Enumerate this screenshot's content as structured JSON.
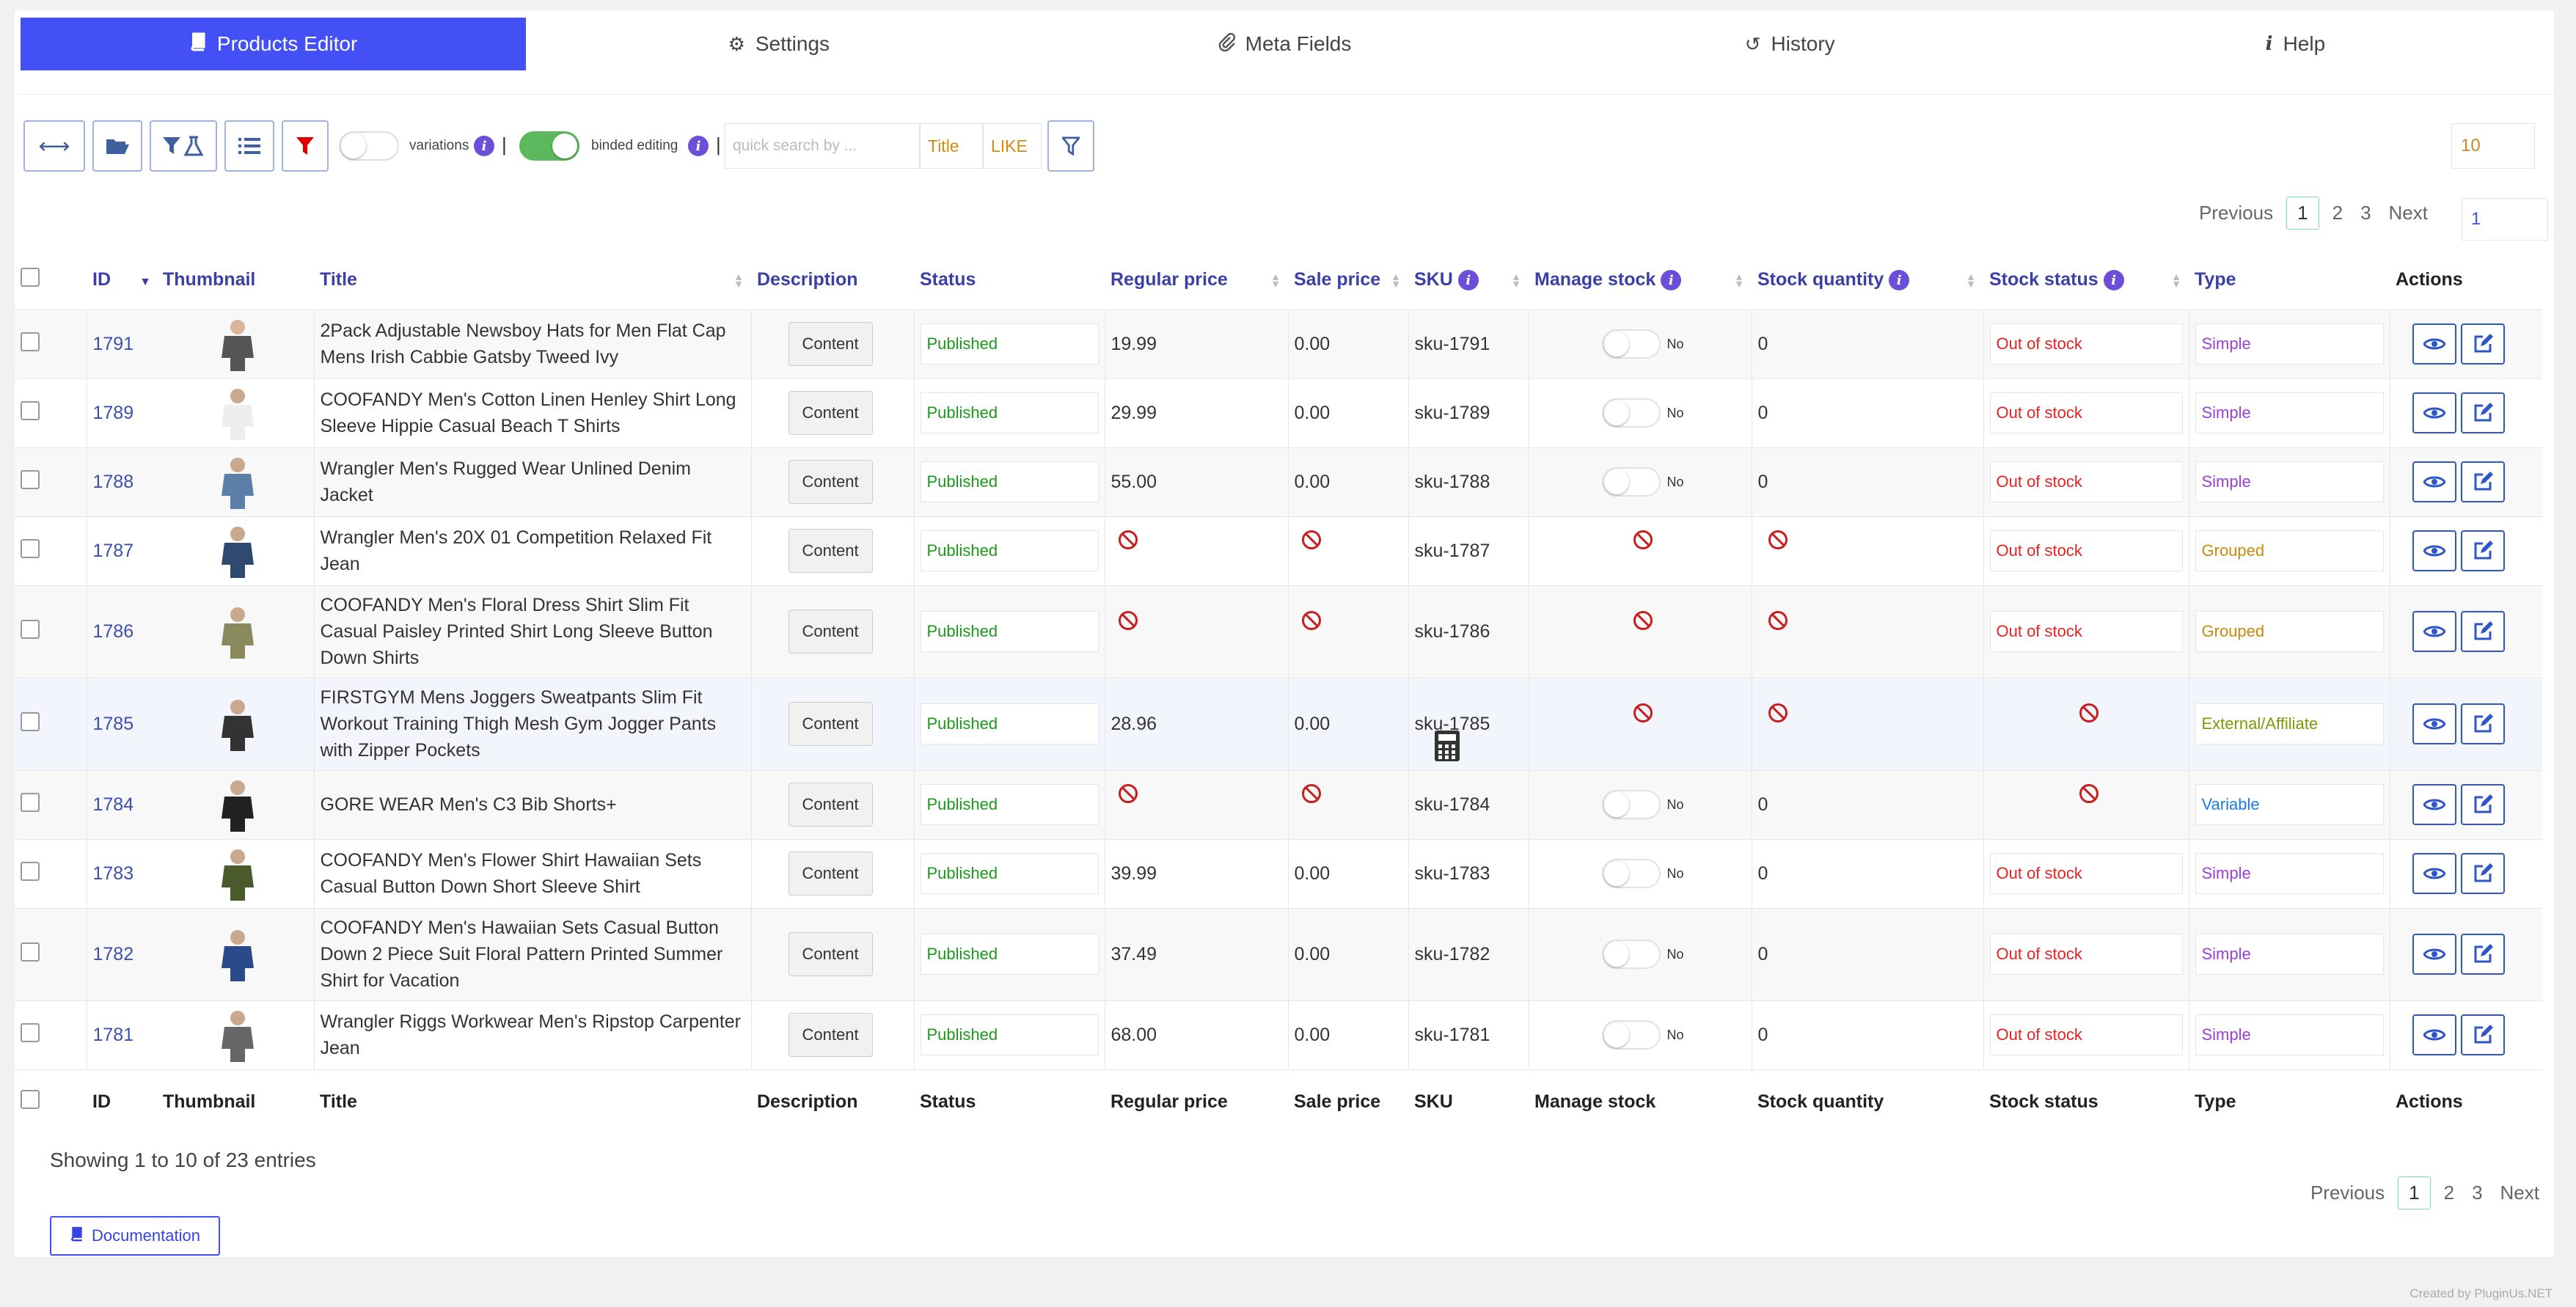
{
  "tabs": [
    {
      "label": "Products Editor",
      "icon": "book-icon"
    },
    {
      "label": "Settings",
      "icon": "gear-icon"
    },
    {
      "label": "Meta Fields",
      "icon": "paperclip-icon"
    },
    {
      "label": "History",
      "icon": "history-icon"
    },
    {
      "label": "Help",
      "icon": "info-icon"
    }
  ],
  "toolbar": {
    "variations_label": "variations",
    "binded_label": "binded editing",
    "search_placeholder": "quick search by ...",
    "search_field": "Title",
    "search_operator": "LIKE",
    "per_page": "10"
  },
  "pagination": {
    "previous": "Previous",
    "pages": [
      "1",
      "2",
      "3"
    ],
    "current": "1",
    "next": "Next",
    "goto": "1"
  },
  "columns": [
    "ID",
    "Thumbnail",
    "Title",
    "Description",
    "Status",
    "Regular price",
    "Sale price",
    "SKU",
    "Manage stock",
    "Stock quantity",
    "Stock status",
    "Type",
    "Actions"
  ],
  "rows": [
    {
      "id": "1791",
      "title": "2Pack Adjustable Newsboy Hats for Men Flat Cap Mens Irish Cabbie Gatsby Tweed Ivy",
      "desc": "Content",
      "status": "Published",
      "regular": "19.99",
      "sale": "0.00",
      "sku": "sku-1791",
      "manage": "No",
      "qty": "0",
      "stock_status": "Out of stock",
      "type": "Simple"
    },
    {
      "id": "1789",
      "title": "COOFANDY Men's Cotton Linen Henley Shirt Long Sleeve Hippie Casual Beach T Shirts",
      "desc": "Content",
      "status": "Published",
      "regular": "29.99",
      "sale": "0.00",
      "sku": "sku-1789",
      "manage": "No",
      "qty": "0",
      "stock_status": "Out of stock",
      "type": "Simple"
    },
    {
      "id": "1788",
      "title": "Wrangler Men's Rugged Wear Unlined Denim Jacket",
      "desc": "Content",
      "status": "Published",
      "regular": "55.00",
      "sale": "0.00",
      "sku": "sku-1788",
      "manage": "No",
      "qty": "0",
      "stock_status": "Out of stock",
      "type": "Simple"
    },
    {
      "id": "1787",
      "title": "Wrangler Men's 20X 01 Competition Relaxed Fit Jean",
      "desc": "Content",
      "status": "Published",
      "regular": null,
      "sale": null,
      "sku": "sku-1787",
      "manage": null,
      "qty": null,
      "stock_status": "Out of stock",
      "type": "Grouped"
    },
    {
      "id": "1786",
      "title": "COOFANDY Men's Floral Dress Shirt Slim Fit Casual Paisley Printed Shirt Long Sleeve Button Down Shirts",
      "desc": "Content",
      "status": "Published",
      "regular": null,
      "sale": null,
      "sku": "sku-1786",
      "manage": null,
      "qty": null,
      "stock_status": "Out of stock",
      "type": "Grouped"
    },
    {
      "id": "1785",
      "title": "FIRSTGYM Mens Joggers Sweatpants Slim Fit Workout Training Thigh Mesh Gym Jogger Pants with Zipper Pockets",
      "desc": "Content",
      "status": "Published",
      "regular": "28.96",
      "sale": "0.00",
      "sku": "sku-1785",
      "manage": null,
      "qty": null,
      "stock_status": null,
      "type": "External/Affiliate"
    },
    {
      "id": "1784",
      "title": "GORE WEAR Men's C3 Bib Shorts+",
      "desc": "Content",
      "status": "Published",
      "regular": null,
      "sale": null,
      "sku": "sku-1784",
      "manage": "No",
      "qty": "0",
      "stock_status": null,
      "type": "Variable"
    },
    {
      "id": "1783",
      "title": "COOFANDY Men's Flower Shirt Hawaiian Sets Casual Button Down Short Sleeve Shirt",
      "desc": "Content",
      "status": "Published",
      "regular": "39.99",
      "sale": "0.00",
      "sku": "sku-1783",
      "manage": "No",
      "qty": "0",
      "stock_status": "Out of stock",
      "type": "Simple"
    },
    {
      "id": "1782",
      "title": "COOFANDY Men's Hawaiian Sets Casual Button Down 2 Piece Suit Floral Pattern Printed Summer Shirt for Vacation",
      "desc": "Content",
      "status": "Published",
      "regular": "37.49",
      "sale": "0.00",
      "sku": "sku-1782",
      "manage": "No",
      "qty": "0",
      "stock_status": "Out of stock",
      "type": "Simple"
    },
    {
      "id": "1781",
      "title": "Wrangler Riggs Workwear Men's Ripstop Carpenter Jean",
      "desc": "Content",
      "status": "Published",
      "regular": "68.00",
      "sale": "0.00",
      "sku": "sku-1781",
      "manage": "No",
      "qty": "0",
      "stock_status": "Out of stock",
      "type": "Simple"
    }
  ],
  "colors": {
    "accent": "#4350f5",
    "published": "#1a9a1a",
    "out_of_stock": "#e02424",
    "simple": "#9b3fd6",
    "grouped": "#c88a08",
    "external": "#7b9a08",
    "variable": "#1a7ce0"
  },
  "footer": {
    "showing": "Showing 1 to 10 of 23 entries",
    "documentation": "Documentation",
    "credit": "Created by PluginUs.NET"
  }
}
